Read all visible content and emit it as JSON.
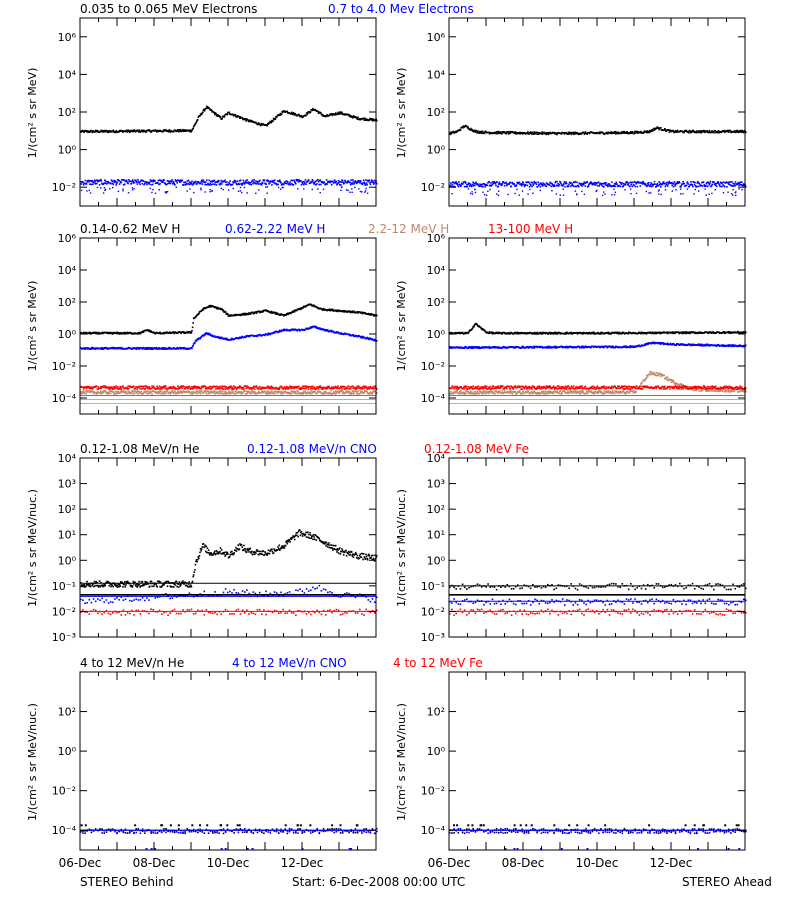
{
  "figure": {
    "footer": {
      "left": "STEREO Behind",
      "center": "Start:  6-Dec-2008 00:00 UTC",
      "right": "STEREO Ahead"
    },
    "x_tick_labels": [
      "06-Dec",
      "08-Dec",
      "10-Dec",
      "12-Dec"
    ],
    "colors": {
      "black": "#000000",
      "blue": "#0000ff",
      "tan": "#c08868",
      "red": "#ff0000"
    }
  },
  "rows": [
    {
      "titles": [
        {
          "text": "0.035 to 0.065 MeV Electrons",
          "color": "#000000"
        },
        {
          "text": "0.7 to 4.0 Mev Electrons",
          "color": "#0000ff"
        }
      ],
      "ylabel": "1/(cm² s sr MeV)",
      "ylim_log10": [
        -3,
        7
      ],
      "ytick_exponents": [
        -2,
        0,
        2,
        4,
        6
      ]
    },
    {
      "titles": [
        {
          "text": "0.14-0.62 MeV H",
          "color": "#000000"
        },
        {
          "text": "0.62-2.22 MeV H",
          "color": "#0000ff"
        },
        {
          "text": "2.2-12 MeV H",
          "color": "#c08868"
        },
        {
          "text": "13-100 MeV H",
          "color": "#ff0000"
        }
      ],
      "ylabel": "1/(cm² s sr MeV)",
      "ylim_log10": [
        -5,
        6
      ],
      "ytick_exponents": [
        -4,
        -2,
        0,
        2,
        4,
        6
      ]
    },
    {
      "titles": [
        {
          "text": "0.12-1.08 MeV/n He",
          "color": "#000000"
        },
        {
          "text": "0.12-1.08 MeV/n CNO",
          "color": "#0000ff"
        },
        {
          "text": "0.12-1.08 MeV Fe",
          "color": "#ff0000"
        }
      ],
      "ylabel": "1/(cm² s sr MeV/nuc.)",
      "ylim_log10": [
        -3,
        4
      ],
      "ytick_labels": [
        "10⁴",
        "10³",
        "10²",
        "10¹",
        "10⁰",
        "10⁻¹",
        "10⁻²",
        "10⁻³"
      ]
    },
    {
      "titles": [
        {
          "text": "4 to 12 MeV/n He",
          "color": "#000000"
        },
        {
          "text": "4 to 12 MeV/n CNO",
          "color": "#0000ff"
        },
        {
          "text": "4 to 12 MeV Fe",
          "color": "#ff0000"
        }
      ],
      "ylabel": "1/(cm² s sr MeV/nuc.)",
      "ylim_log10": [
        -5,
        4
      ],
      "ytick_exponents": [
        -4,
        -2,
        0,
        2
      ]
    }
  ],
  "chart_data": [
    {
      "type": "scatter",
      "panel": "electrons-behind",
      "xlim_days": [
        6,
        14
      ],
      "y_log": true,
      "ylim_log10": [
        -3,
        7
      ],
      "series": [
        {
          "name": "0.035 to 0.065 MeV Electrons",
          "color": "#000000",
          "x": [
            6.0,
            9.0,
            9.2,
            9.4,
            9.6,
            9.8,
            10.0,
            10.5,
            11.0,
            11.5,
            12.0,
            12.3,
            12.6,
            13.0,
            13.5,
            14.0
          ],
          "y_log10": [
            1.0,
            1.05,
            1.8,
            2.3,
            2.0,
            1.7,
            2.0,
            1.6,
            1.3,
            2.1,
            1.8,
            2.2,
            1.8,
            2.0,
            1.7,
            1.6
          ]
        },
        {
          "name": "0.7 to 4.0 Mev Electrons",
          "color": "#0000ff",
          "x": [
            6.0,
            14.0
          ],
          "y_log10": [
            -1.7,
            -1.7
          ]
        }
      ]
    },
    {
      "type": "scatter",
      "panel": "electrons-ahead",
      "xlim_days": [
        6,
        14
      ],
      "y_log": true,
      "ylim_log10": [
        -3,
        7
      ],
      "series": [
        {
          "name": "0.035 to 0.065 MeV Electrons",
          "color": "#000000",
          "x": [
            6.0,
            6.2,
            6.4,
            6.7,
            7.0,
            9.0,
            11.0,
            11.4,
            11.6,
            12.0,
            14.0
          ],
          "y_log10": [
            0.9,
            1.0,
            1.3,
            1.0,
            0.95,
            0.9,
            0.95,
            1.0,
            1.2,
            1.0,
            1.0
          ]
        },
        {
          "name": "0.7 to 4.0 Mev Electrons",
          "color": "#0000ff",
          "x": [
            6.0,
            14.0
          ],
          "y_log10": [
            -1.8,
            -1.8
          ]
        }
      ]
    },
    {
      "type": "scatter",
      "panel": "protons-behind",
      "xlim_days": [
        6,
        14
      ],
      "y_log": true,
      "ylim_log10": [
        -5,
        6
      ],
      "series": [
        {
          "name": "0.14-0.62 MeV H",
          "color": "#000000",
          "x": [
            6.0,
            7.6,
            7.8,
            8.0,
            9.0,
            9.05,
            9.3,
            9.5,
            9.8,
            10.0,
            10.5,
            11.0,
            11.5,
            11.9,
            12.2,
            12.5,
            13.0,
            13.5,
            14.0
          ],
          "y_log10": [
            0.1,
            0.1,
            0.3,
            0.1,
            0.15,
            1.0,
            1.6,
            1.8,
            1.6,
            1.2,
            1.3,
            1.5,
            1.2,
            1.6,
            1.9,
            1.6,
            1.5,
            1.4,
            1.2
          ]
        },
        {
          "name": "0.62-2.22 MeV H",
          "color": "#0000ff",
          "x": [
            6.0,
            9.0,
            9.1,
            9.4,
            9.6,
            10.0,
            10.5,
            11.0,
            11.5,
            12.0,
            12.3,
            12.6,
            13.0,
            13.5,
            14.0
          ],
          "y_log10": [
            -0.85,
            -0.85,
            -0.4,
            0.1,
            -0.1,
            -0.3,
            -0.1,
            0.0,
            0.3,
            0.3,
            0.5,
            0.3,
            0.1,
            -0.1,
            -0.35
          ]
        },
        {
          "name": "2.2-12 MeV H",
          "color": "#c08868",
          "x": [
            6.0,
            14.0
          ],
          "y_log10": [
            -3.6,
            -3.6
          ]
        },
        {
          "name": "13-100 MeV H",
          "color": "#ff0000",
          "x": [
            6.0,
            14.0
          ],
          "y_log10": [
            -3.3,
            -3.3
          ]
        }
      ]
    },
    {
      "type": "scatter",
      "panel": "protons-ahead",
      "xlim_days": [
        6,
        14
      ],
      "y_log": true,
      "ylim_log10": [
        -5,
        6
      ],
      "series": [
        {
          "name": "0.14-0.62 MeV H",
          "color": "#000000",
          "x": [
            6.0,
            6.5,
            6.7,
            6.85,
            7.0,
            7.2,
            10.0,
            14.0
          ],
          "y_log10": [
            0.1,
            0.1,
            0.7,
            0.4,
            0.15,
            0.1,
            0.1,
            0.15
          ]
        },
        {
          "name": "0.62-2.22 MeV H",
          "color": "#0000ff",
          "x": [
            6.0,
            11.0,
            11.5,
            12.0,
            14.0
          ],
          "y_log10": [
            -0.8,
            -0.75,
            -0.5,
            -0.6,
            -0.7
          ]
        },
        {
          "name": "2.2-12 MeV H",
          "color": "#c08868",
          "x": [
            6.0,
            11.0,
            11.2,
            11.4,
            11.7,
            12.0,
            12.3,
            12.6,
            14.0
          ],
          "y_log10": [
            -3.6,
            -3.6,
            -3.0,
            -2.4,
            -2.5,
            -2.9,
            -3.2,
            -3.4,
            -3.5
          ]
        },
        {
          "name": "13-100 MeV H",
          "color": "#ff0000",
          "x": [
            6.0,
            14.0
          ],
          "y_log10": [
            -3.3,
            -3.3
          ]
        }
      ]
    },
    {
      "type": "scatter",
      "panel": "heavy-ions-low-behind",
      "xlim_days": [
        6,
        14
      ],
      "y_log": true,
      "ylim_log10": [
        -3,
        4
      ],
      "series": [
        {
          "name": "0.12-1.08 MeV/n He",
          "color": "#000000",
          "x": [
            6.0,
            9.0,
            9.1,
            9.3,
            9.5,
            9.8,
            10.0,
            10.3,
            10.5,
            11.0,
            11.5,
            11.9,
            12.2,
            12.5,
            13.0,
            13.5,
            14.0
          ],
          "y_log10": [
            -0.9,
            -0.9,
            -0.1,
            0.6,
            0.3,
            0.4,
            0.2,
            0.6,
            0.4,
            0.3,
            0.6,
            1.1,
            1.0,
            0.8,
            0.4,
            0.2,
            0.1
          ]
        },
        {
          "name": "0.12-1.08 MeV/n CNO",
          "color": "#0000ff",
          "x": [
            6.0,
            9.2,
            10.0,
            11.0,
            12.0,
            12.3,
            13.0,
            14.0
          ],
          "y_log10": [
            -1.6,
            -1.3,
            -1.2,
            -1.3,
            -1.2,
            -1.0,
            -1.3,
            -1.5
          ]
        },
        {
          "name": "0.12-1.08 MeV Fe",
          "color": "#ff0000",
          "x": [
            6.0,
            14.0
          ],
          "y_log10": [
            -2.0,
            -2.0
          ]
        }
      ]
    },
    {
      "type": "scatter",
      "panel": "heavy-ions-low-ahead",
      "xlim_days": [
        6,
        14
      ],
      "y_log": true,
      "ylim_log10": [
        -3,
        4
      ],
      "series": [
        {
          "name": "0.12-1.08 MeV/n He",
          "color": "#000000",
          "x": [
            6.0,
            14.0
          ],
          "y_log10": [
            -1.0,
            -1.0
          ]
        },
        {
          "name": "0.12-1.08 MeV/n CNO",
          "color": "#0000ff",
          "x": [
            6.0,
            14.0
          ],
          "y_log10": [
            -1.6,
            -1.6
          ]
        },
        {
          "name": "0.12-1.08 MeV Fe",
          "color": "#ff0000",
          "x": [
            6.0,
            14.0
          ],
          "y_log10": [
            -2.0,
            -2.0
          ]
        }
      ]
    },
    {
      "type": "scatter",
      "panel": "heavy-ions-high-behind",
      "xlim_days": [
        6,
        14
      ],
      "y_log": true,
      "ylim_log10": [
        -5,
        4
      ],
      "series": [
        {
          "name": "4 to 12 MeV/n He",
          "color": "#000000",
          "x": [
            6.0,
            14.0
          ],
          "y_log10": [
            -4.0,
            -4.0
          ]
        },
        {
          "name": "4 to 12 MeV/n CNO",
          "color": "#0000ff",
          "x": [
            6.0,
            14.0
          ],
          "y_log10": [
            -4.0,
            -4.0
          ]
        }
      ]
    },
    {
      "type": "scatter",
      "panel": "heavy-ions-high-ahead",
      "xlim_days": [
        6,
        14
      ],
      "y_log": true,
      "ylim_log10": [
        -5,
        4
      ],
      "series": [
        {
          "name": "4 to 12 MeV/n He",
          "color": "#000000",
          "x": [
            6.0,
            14.0
          ],
          "y_log10": [
            -4.0,
            -4.0
          ]
        },
        {
          "name": "4 to 12 MeV/n CNO",
          "color": "#0000ff",
          "x": [
            6.0,
            14.0
          ],
          "y_log10": [
            -4.0,
            -4.0
          ]
        }
      ]
    }
  ]
}
